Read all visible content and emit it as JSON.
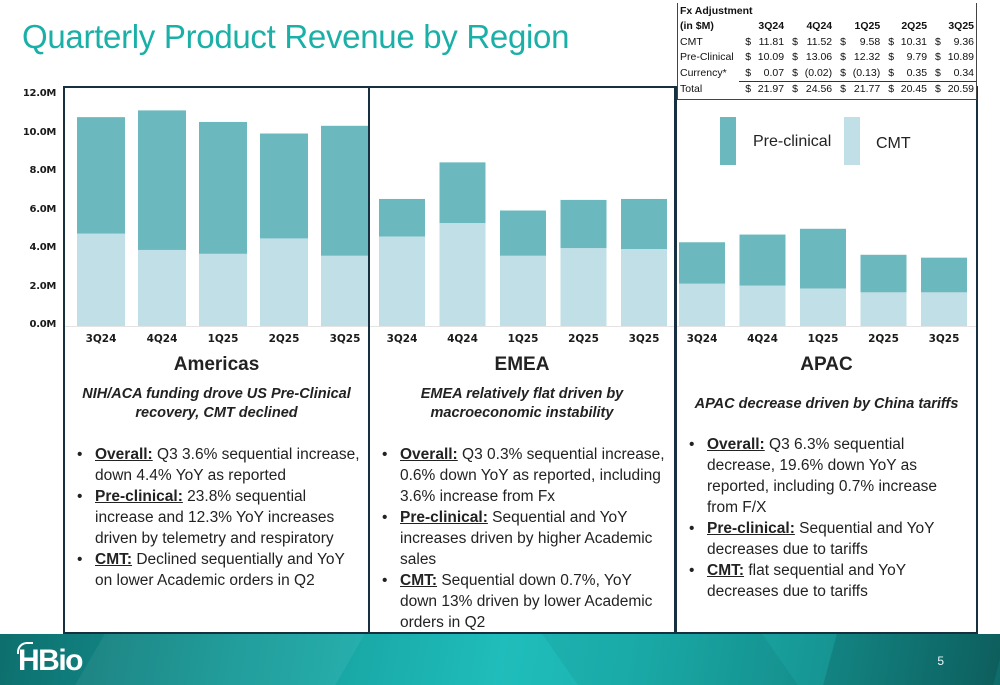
{
  "title": "Quarterly Product Revenue by Region",
  "colors": {
    "title": "#1ab0a8",
    "preclinical": "#6bb8be",
    "cmt": "#c0dfe6",
    "border": "#17303f"
  },
  "fx_table": {
    "header": [
      "Fx Adjustment",
      "(in $M)"
    ],
    "columns": [
      "3Q24",
      "4Q24",
      "1Q25",
      "2Q25",
      "3Q25"
    ],
    "rows": [
      {
        "label": "CMT",
        "values": [
          "11.81",
          "11.52",
          "9.58",
          "10.31",
          "9.36"
        ]
      },
      {
        "label": "Pre-Clinical",
        "values": [
          "10.09",
          "13.06",
          "12.32",
          "9.79",
          "10.89"
        ]
      },
      {
        "label": "Currency*",
        "values": [
          "0.07",
          "(0.02)",
          "(0.13)",
          "0.35",
          "0.34"
        ]
      },
      {
        "label": "Total",
        "values": [
          "21.97",
          "24.56",
          "21.77",
          "20.45",
          "20.59"
        ]
      }
    ],
    "currency_symbol": "$"
  },
  "legend": [
    {
      "name": "Pre-clinical",
      "color": "#6bb8be"
    },
    {
      "name": "CMT",
      "color": "#c0dfe6"
    }
  ],
  "chart_data": [
    {
      "type": "bar",
      "stacked": true,
      "title": "Americas",
      "categories": [
        "3Q24",
        "4Q24",
        "1Q25",
        "2Q25",
        "3Q25"
      ],
      "series": [
        {
          "name": "CMT",
          "values": [
            4.8,
            3.95,
            3.75,
            4.55,
            3.65
          ]
        },
        {
          "name": "Pre-clinical",
          "values": [
            6.05,
            7.25,
            6.85,
            5.45,
            6.75
          ]
        }
      ],
      "ylim": [
        0,
        12
      ],
      "yticks": [
        "0.0M",
        "2.0M",
        "4.0M",
        "6.0M",
        "8.0M",
        "10.0M",
        "12.0M"
      ],
      "ylabel": "",
      "xlabel": ""
    },
    {
      "type": "bar",
      "stacked": true,
      "title": "EMEA",
      "categories": [
        "3Q24",
        "4Q24",
        "1Q25",
        "2Q25",
        "3Q25"
      ],
      "series": [
        {
          "name": "CMT",
          "values": [
            4.65,
            5.35,
            3.65,
            4.05,
            4.0
          ]
        },
        {
          "name": "Pre-clinical",
          "values": [
            1.95,
            3.15,
            2.35,
            2.5,
            2.6
          ]
        }
      ],
      "ylim": [
        0,
        12
      ],
      "ylabel": "",
      "xlabel": ""
    },
    {
      "type": "bar",
      "stacked": true,
      "title": "APAC",
      "categories": [
        "3Q24",
        "4Q24",
        "1Q25",
        "2Q25",
        "3Q25"
      ],
      "series": [
        {
          "name": "CMT",
          "values": [
            2.2,
            2.1,
            1.95,
            1.75,
            1.75
          ]
        },
        {
          "name": "Pre-clinical",
          "values": [
            2.15,
            2.65,
            3.1,
            1.95,
            1.8
          ]
        }
      ],
      "ylim": [
        0,
        12
      ],
      "ylabel": "",
      "xlabel": ""
    }
  ],
  "regions": [
    {
      "name": "Americas",
      "subtitle": "NIH/ACA funding drove US Pre-Clinical recovery, CMT declined",
      "bullets": [
        {
          "label": "Overall:",
          "text": " Q3 3.6% sequential increase, down 4.4% YoY as reported"
        },
        {
          "label": "Pre-clinical:",
          "text": " 23.8% sequential increase and 12.3% YoY increases driven by telemetry and respiratory"
        },
        {
          "label": "CMT:",
          "text": " Declined sequentially and YoY on lower Academic orders in Q2"
        }
      ]
    },
    {
      "name": "EMEA",
      "subtitle": "EMEA relatively flat driven by macroeconomic instability",
      "bullets": [
        {
          "label": "Overall:",
          "text": " Q3 0.3% sequential increase, 0.6% down YoY as reported, including 3.6% increase from Fx"
        },
        {
          "label": "Pre-clinical:",
          "text": " Sequential and YoY increases driven by higher Academic sales"
        },
        {
          "label": "CMT:",
          "text": " Sequential down 0.7%, YoY down 13% driven by lower Academic orders in Q2"
        }
      ]
    },
    {
      "name": "APAC",
      "subtitle": "APAC decrease driven by China tariffs",
      "bullets": [
        {
          "label": "Overall:",
          "text": " Q3 6.3% sequential decrease, 19.6% down YoY as reported, including 0.7% increase from F/X"
        },
        {
          "label": "Pre-clinical:",
          "text": " Sequential and YoY decreases due to tariffs"
        },
        {
          "label": "CMT:",
          "text": "  flat sequential and YoY decreases due to tariffs"
        }
      ]
    }
  ],
  "footer": {
    "logo": "HBio",
    "page_number": "5"
  }
}
